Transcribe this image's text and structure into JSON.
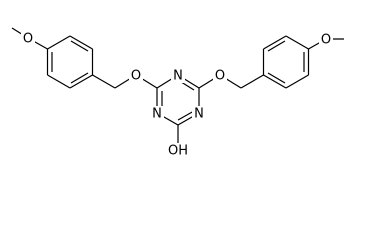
{
  "atoms": [
    {
      "label": "O"
    },
    {
      "label": "O"
    },
    {
      "label": "N"
    },
    {
      "label": "O"
    },
    {
      "label": "O"
    },
    {
      "label": "N"
    },
    {
      "label": "N"
    },
    {
      "label": "OH"
    }
  ]
}
